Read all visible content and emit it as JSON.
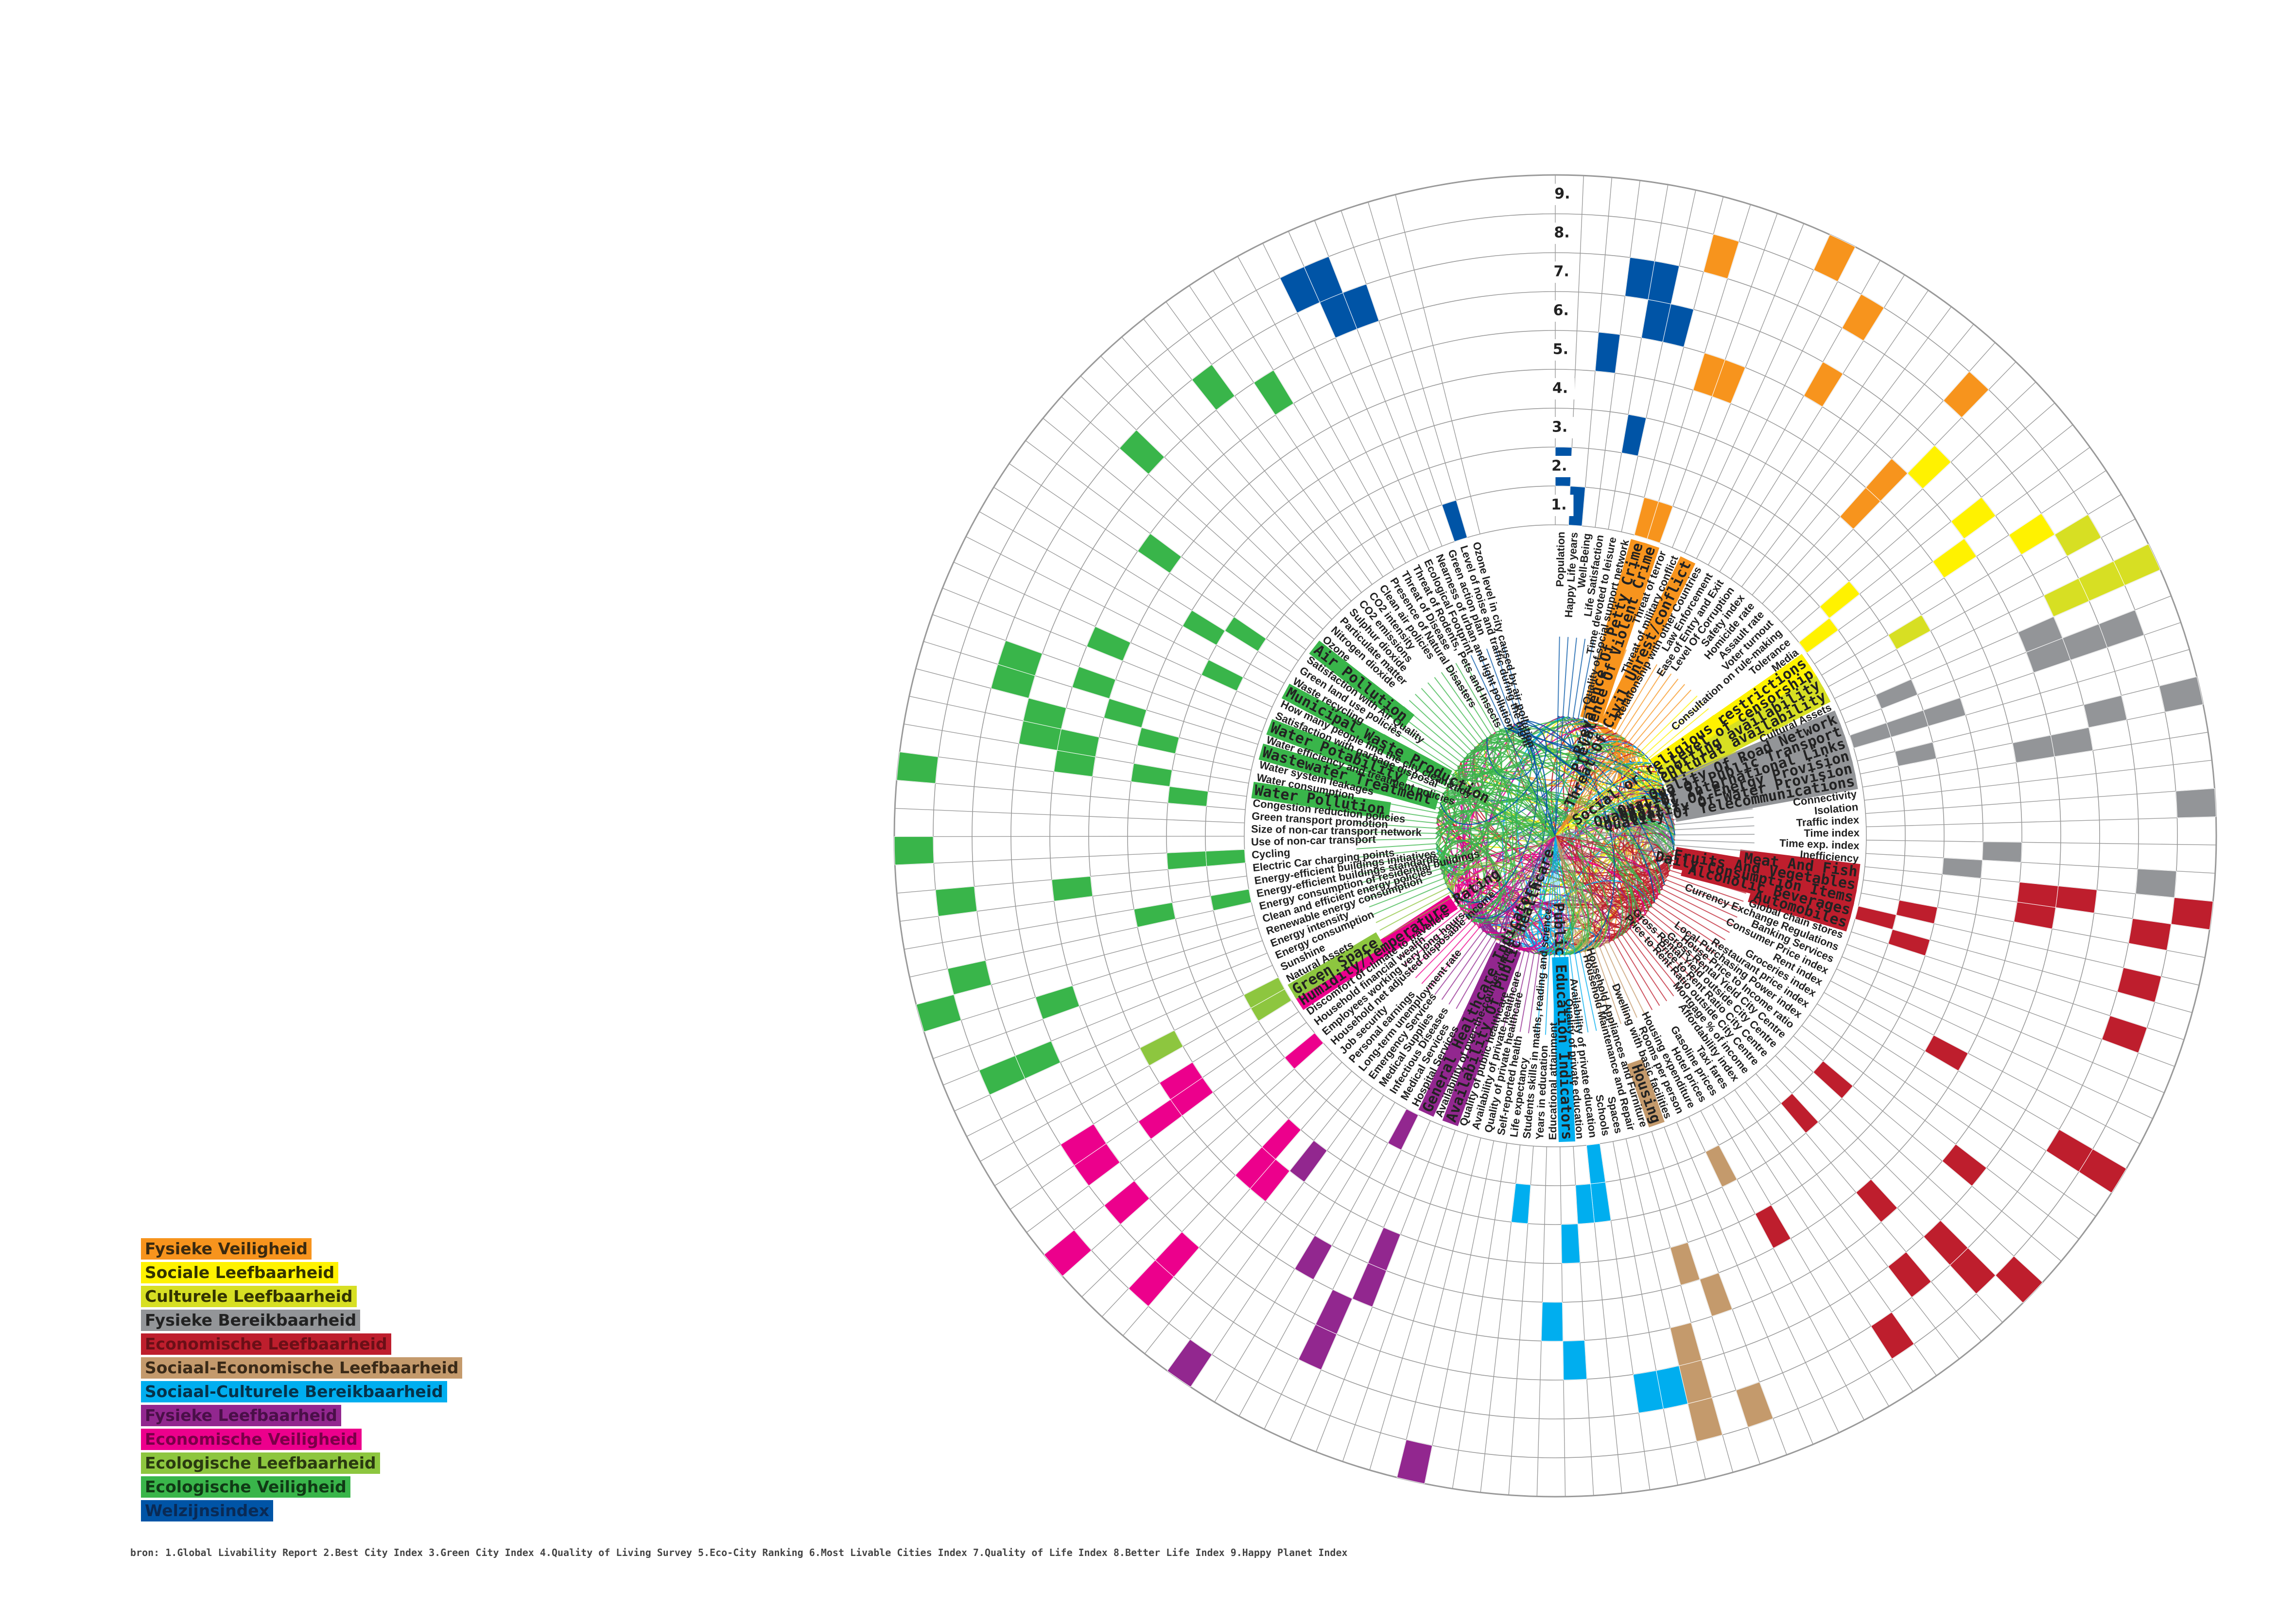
{
  "legend": [
    {
      "label": "Fysieke Veiligheid",
      "color": "#F7941D",
      "text_color": "#3a2a10"
    },
    {
      "label": "Sociale Leefbaarheid",
      "color": "#FFF200",
      "text_color": "#333300"
    },
    {
      "label": "Culturele Leefbaarheid",
      "color": "#D7DF23",
      "text_color": "#333300"
    },
    {
      "label": "Fysieke Bereikbaarheid",
      "color": "#939598",
      "text_color": "#222222"
    },
    {
      "label": "Economische Leefbaarheid",
      "color": "#BE1E2D",
      "text_color": "#6b0f17"
    },
    {
      "label": "Sociaal-Economische Leefbaarheid",
      "color": "#C49A6C",
      "text_color": "#3a2a18"
    },
    {
      "label": "Sociaal-Culturele Bereikbaarheid",
      "color": "#00AEEF",
      "text_color": "#06324a"
    },
    {
      "label": "Fysieke Leefbaarheid",
      "color": "#92278F",
      "text_color": "#4a0f48"
    },
    {
      "label": "Economische Veiligheid",
      "color": "#EC008C",
      "text_color": "#7a0048"
    },
    {
      "label": "Ecologische Leefbaarheid",
      "color": "#8DC63F",
      "text_color": "#2a3a10"
    },
    {
      "label": "Ecologische Veiligheid",
      "color": "#39B54A",
      "text_color": "#103a15"
    },
    {
      "label": "Welzijnsindex",
      "color": "#0054A6",
      "text_color": "#0a2a55"
    }
  ],
  "index_numbers": [
    "1.",
    "2.",
    "3.",
    "4.",
    "5.",
    "6.",
    "7.",
    "8.",
    "9."
  ],
  "source_note": "bron: 1.Global Livability Report   2.Best City Index   3.Green City Index   4.Quality of Living Survey   5.Eco-City Ranking   6.Most Livable Cities Index   7.Quality of Life Index   8.Better Life Index   9.Happy Planet Index",
  "groups": [
    {
      "key": "wz",
      "color": "#0054A6",
      "items": [
        {
          "label": "Population",
          "major": false
        },
        {
          "label": "Happy Life years",
          "major": false
        },
        {
          "label": "Well-Being",
          "major": false
        },
        {
          "label": "Life Satisfaction",
          "major": false
        },
        {
          "label": "Time devoted to leisure",
          "major": false
        },
        {
          "label": "Quality of social support network",
          "major": false
        }
      ]
    },
    {
      "key": "fv",
      "color": "#F7941D",
      "items": [
        {
          "label": "Prevalence Of Petty Crime",
          "major": true
        },
        {
          "label": "Prevalence Of Violent Crime",
          "major": true
        },
        {
          "label": "Threat of terror",
          "major": false
        },
        {
          "label": "Threat of military conflict",
          "major": false
        },
        {
          "label": "Threat Of Civil Unrest/conflict",
          "major": true
        },
        {
          "label": "Relationship with other Countries",
          "major": false
        },
        {
          "label": "Law Enforcement",
          "major": false
        },
        {
          "label": "Ease of Entry and Exit",
          "major": false
        },
        {
          "label": "Level Of Corruption",
          "major": false
        },
        {
          "label": "Safety index",
          "major": false
        },
        {
          "label": "Homicide rate",
          "major": false
        },
        {
          "label": "Assault rate",
          "major": false
        }
      ]
    },
    {
      "key": "sl",
      "color": "#FFF200",
      "items": [
        {
          "label": "Voter turnout",
          "major": false
        },
        {
          "label": "Consultation on rule-making",
          "major": false
        },
        {
          "label": "Tolerance",
          "major": false
        },
        {
          "label": "Media",
          "major": false
        },
        {
          "label": "Social or religious restrictions",
          "major": true
        },
        {
          "label": "Level of censorship",
          "major": true
        }
      ]
    },
    {
      "key": "cl",
      "color": "#D7DF23",
      "items": [
        {
          "label": "Sporting availability",
          "major": true
        },
        {
          "label": "Cultural availability",
          "major": true
        },
        {
          "label": "Cultural Assets",
          "major": false
        }
      ]
    },
    {
      "key": "fb",
      "color": "#939598",
      "items": [
        {
          "label": "Quality Of Road Network",
          "major": true
        },
        {
          "label": "Quality Of Public Transport",
          "major": true
        },
        {
          "label": "Quality Of International Links",
          "major": true
        },
        {
          "label": "Quality Of Energy Provision",
          "major": true
        },
        {
          "label": "Quality Of Water Provision",
          "major": true
        },
        {
          "label": "Quality Of Telecommunications",
          "major": true
        },
        {
          "label": "Connectivity",
          "major": false
        },
        {
          "label": "Isolation",
          "major": false
        },
        {
          "label": "Traffic index",
          "major": false
        },
        {
          "label": "Time index",
          "major": false
        },
        {
          "label": "Time exp. index",
          "major": false
        },
        {
          "label": "Inefficiency",
          "major": false
        }
      ]
    },
    {
      "key": "el",
      "color": "#BE1E2D",
      "items": [
        {
          "label": "Meat And Fish",
          "major": true
        },
        {
          "label": "Fruits And Vegetables",
          "major": true
        },
        {
          "label": "Daily Consumption Items",
          "major": true
        },
        {
          "label": "Alcoholic Beverages",
          "major": true
        },
        {
          "label": "Automobiles",
          "major": true
        },
        {
          "label": "Global chain stores",
          "major": false
        },
        {
          "label": "Currency Exchange Regulations",
          "major": false
        },
        {
          "label": "Banking Services",
          "major": false
        },
        {
          "label": "Consumer Price index",
          "major": false
        },
        {
          "label": "Rent index",
          "major": false
        },
        {
          "label": "Groceries index",
          "major": false
        },
        {
          "label": "Restaurant price index",
          "major": false
        },
        {
          "label": "Local Purchasing Power index",
          "major": false
        },
        {
          "label": "House Price to Income ratio",
          "major": false
        },
        {
          "label": "Gross Rental Yield City Centre",
          "major": false
        },
        {
          "label": "Gross Rental Yield outside City Centre",
          "major": false
        },
        {
          "label": "Price to Rent Ratio City Centre",
          "major": false
        },
        {
          "label": "Price to Rent Ratio outside City Centre",
          "major": false
        },
        {
          "label": "Mortgage % of income",
          "major": false
        },
        {
          "label": "Affordability index",
          "major": false
        },
        {
          "label": "Taxi fares",
          "major": false
        },
        {
          "label": "Gasoline prices",
          "major": false
        },
        {
          "label": "Hotel prices",
          "major": false
        }
      ]
    },
    {
      "key": "se",
      "color": "#C49A6C",
      "items": [
        {
          "label": "Housing expenditure",
          "major": false
        },
        {
          "label": "Rooms per person",
          "major": false
        },
        {
          "label": "Dwelling with basic facilities",
          "major": false
        },
        {
          "label": "Housing",
          "major": true
        },
        {
          "label": "Household Appliances and Furniture",
          "major": false
        },
        {
          "label": "Household Maintenance and Repair",
          "major": false
        }
      ]
    },
    {
      "key": "sc",
      "color": "#00AEEF",
      "items": [
        {
          "label": "Spaces",
          "major": false
        },
        {
          "label": "Schools",
          "major": false
        },
        {
          "label": "Availability of private education",
          "major": false
        },
        {
          "label": "Quality of private education",
          "major": false
        },
        {
          "label": "Public Education Indicators",
          "major": true
        },
        {
          "label": "Educational attainment",
          "major": false
        },
        {
          "label": "Years in education",
          "major": false
        },
        {
          "label": "Students skills in maths, reading and science",
          "major": false
        }
      ]
    },
    {
      "key": "fl",
      "color": "#92278F",
      "items": [
        {
          "label": "Life expectancy",
          "major": false
        },
        {
          "label": "Self-reported health",
          "major": false
        },
        {
          "label": "Quality of private healthcare",
          "major": false
        },
        {
          "label": "Availability of private healthcare",
          "major": false
        },
        {
          "label": "Quality of public healthcare",
          "major": false
        },
        {
          "label": "Availability Of Public Healthcare",
          "major": true
        },
        {
          "label": "Availability of over-the-counter drugs",
          "major": false
        },
        {
          "label": "General Healthcare Indicators",
          "major": true
        },
        {
          "label": "Hospital Services",
          "major": false
        },
        {
          "label": "Medical Services",
          "major": false
        },
        {
          "label": "Infectious Diseases",
          "major": false
        },
        {
          "label": "Medical Supplies",
          "major": false
        },
        {
          "label": "Emergency Services",
          "major": false
        }
      ]
    },
    {
      "key": "ev",
      "color": "#EC008C",
      "items": [
        {
          "label": "Long-term unemployment rate",
          "major": false
        },
        {
          "label": "Personal earnings",
          "major": false
        },
        {
          "label": "Job security",
          "major": false
        },
        {
          "label": "Household net adjusted disposable income",
          "major": false
        },
        {
          "label": "Employees working very long hours",
          "major": false
        },
        {
          "label": "Household financial wealth",
          "major": false
        },
        {
          "label": "Discomfort of climate to travellers",
          "major": false
        },
        {
          "label": "Humidity/Temperature Rating",
          "major": true
        }
      ]
    },
    {
      "key": "ecl",
      "color": "#8DC63F",
      "items": [
        {
          "label": "Green Space",
          "major": true
        },
        {
          "label": "Natural Assets",
          "major": false
        },
        {
          "label": "Sunshine",
          "major": false
        }
      ]
    },
    {
      "key": "ecv",
      "color": "#39B54A",
      "items": [
        {
          "label": "Energy consumption",
          "major": false
        },
        {
          "label": "Energy intensity",
          "major": false
        },
        {
          "label": "Renewable energy consumption",
          "major": false
        },
        {
          "label": "Clean and efficient energy policies",
          "major": false
        },
        {
          "label": "Energy consumption of residential buildings",
          "major": false
        },
        {
          "label": "Energy-efficient buildings standards",
          "major": false
        },
        {
          "label": "Energy-efficient buildings initiatives",
          "major": false
        },
        {
          "label": "Electric Car charging points",
          "major": false
        },
        {
          "label": "Cycling",
          "major": false
        },
        {
          "label": "Use of non-car transport",
          "major": false
        },
        {
          "label": "Size of non-car transport network",
          "major": false
        },
        {
          "label": "Green transport promotion",
          "major": false
        },
        {
          "label": "Congestion reduction policies",
          "major": false
        },
        {
          "label": "Water Pollution",
          "major": true
        },
        {
          "label": "Water consumption",
          "major": false
        },
        {
          "label": "Water system leakages",
          "major": false
        },
        {
          "label": "Wastewater Treatment",
          "major": true
        },
        {
          "label": "Water efficiency and treatment policies",
          "major": false
        },
        {
          "label": "Water Potability",
          "major": true
        },
        {
          "label": "Satisfaction with garbage disposal",
          "major": false
        },
        {
          "label": "How many people find the city clean&tidy",
          "major": false
        },
        {
          "label": "Municipal Waste Production",
          "major": true
        },
        {
          "label": "Waste recycling",
          "major": false
        },
        {
          "label": "Green land use policies",
          "major": false
        },
        {
          "label": "Satisfaction with Air Quality",
          "major": false
        },
        {
          "label": "Air Pollution",
          "major": true
        },
        {
          "label": "Ozone",
          "major": false
        },
        {
          "label": "Nitrogen dioxide",
          "major": false
        },
        {
          "label": "Particulate matter",
          "major": false
        },
        {
          "label": "Sulphur dioxide",
          "major": false
        },
        {
          "label": "CO2 emissions",
          "major": false
        },
        {
          "label": "CO2 intensity",
          "major": false
        },
        {
          "label": "Clean air policies",
          "major": false
        },
        {
          "label": "Presence of Natural Disasters",
          "major": false
        },
        {
          "label": "Threat of Disease",
          "major": false
        },
        {
          "label": "Threat of Rodents, Pets and Insects",
          "major": false
        }
      ]
    },
    {
      "key": "wz2",
      "color": "#0054A6",
      "items": [
        {
          "label": "Ecological Footprint",
          "major": false
        },
        {
          "label": "Nearness of urban and light pollution",
          "major": false
        },
        {
          "label": "Green action plan",
          "major": false
        },
        {
          "label": "Level of noise and traffic during the night",
          "major": false
        },
        {
          "label": "Ozone level in city caused by air pollution",
          "major": false
        }
      ]
    }
  ]
}
